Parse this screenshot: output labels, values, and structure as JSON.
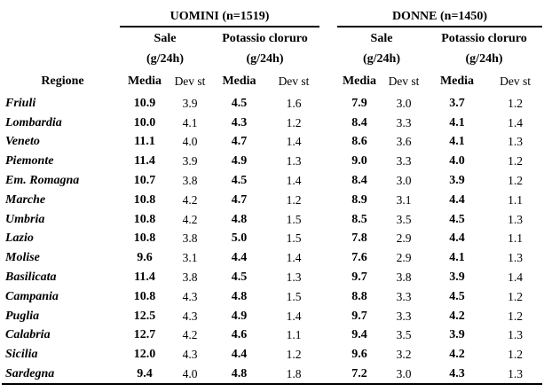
{
  "colors": {
    "text": "#000000",
    "background": "#ffffff",
    "rule": "#000000"
  },
  "table": {
    "group_headers": [
      {
        "label": "UOMINI (n=1519)"
      },
      {
        "label": "DONNE (n=1450)"
      }
    ],
    "measure_headers": [
      "Sale",
      "Potassio cloruro",
      "Sale",
      "Potassio cloruro"
    ],
    "units": [
      "(g/24h)",
      "(g/24h)",
      "(g/24h)",
      "(g/24h)"
    ],
    "region_header": "Regione",
    "stat_headers": [
      "Media",
      "Dev st",
      "Media",
      "Dev st",
      "Media",
      "Dev st",
      "Media",
      "Dev st"
    ],
    "rows": [
      {
        "regione": "Friuli",
        "values": [
          "10.9",
          "3.9",
          "4.5",
          "1.6",
          "7.9",
          "3.0",
          "3.7",
          "1.2"
        ]
      },
      {
        "regione": "Lombardia",
        "values": [
          "10.0",
          "4.1",
          "4.3",
          "1.2",
          "8.4",
          "3.3",
          "4.1",
          "1.4"
        ]
      },
      {
        "regione": "Veneto",
        "values": [
          "11.1",
          "4.0",
          "4.7",
          "1.4",
          "8.6",
          "3.6",
          "4.1",
          "1.3"
        ]
      },
      {
        "regione": "Piemonte",
        "values": [
          "11.4",
          "3.9",
          "4.9",
          "1.3",
          "9.0",
          "3.3",
          "4.0",
          "1.2"
        ]
      },
      {
        "regione": "Em. Romagna",
        "values": [
          "10.7",
          "3.8",
          "4.5",
          "1.4",
          "8.4",
          "3.0",
          "3.9",
          "1.2"
        ]
      },
      {
        "regione": "Marche",
        "values": [
          "10.8",
          "4.2",
          "4.7",
          "1.2",
          "8.9",
          "3.1",
          "4.4",
          "1.1"
        ]
      },
      {
        "regione": "Umbria",
        "values": [
          "10.8",
          "4.2",
          "4.8",
          "1.5",
          "8.5",
          "3.5",
          "4.5",
          "1.3"
        ]
      },
      {
        "regione": "Lazio",
        "values": [
          "10.8",
          "3.8",
          "5.0",
          "1.5",
          "7.8",
          "2.9",
          "4.4",
          "1.1"
        ]
      },
      {
        "regione": "Molise",
        "values": [
          "9.6",
          "3.1",
          "4.4",
          "1.4",
          "7.6",
          "2.9",
          "4.1",
          "1.3"
        ]
      },
      {
        "regione": "Basilicata",
        "values": [
          "11.4",
          "3.8",
          "4.5",
          "1.3",
          "9.7",
          "3.8",
          "3.9",
          "1.4"
        ]
      },
      {
        "regione": "Campania",
        "values": [
          "10.8",
          "4.3",
          "4.8",
          "1.5",
          "8.8",
          "3.3",
          "4.5",
          "1.2"
        ]
      },
      {
        "regione": "Puglia",
        "values": [
          "12.5",
          "4.3",
          "4.9",
          "1.4",
          "9.7",
          "3.3",
          "4.2",
          "1.2"
        ]
      },
      {
        "regione": "Calabria",
        "values": [
          "12.7",
          "4.2",
          "4.6",
          "1.1",
          "9.4",
          "3.5",
          "3.9",
          "1.3"
        ]
      },
      {
        "regione": "Sicilia",
        "values": [
          "12.0",
          "4.3",
          "4.4",
          "1.2",
          "9.6",
          "3.2",
          "4.2",
          "1.2"
        ]
      },
      {
        "regione": "Sardegna",
        "values": [
          "9.4",
          "4.0",
          "4.8",
          "1.8",
          "7.2",
          "3.0",
          "4.3",
          "1.3"
        ]
      }
    ]
  }
}
